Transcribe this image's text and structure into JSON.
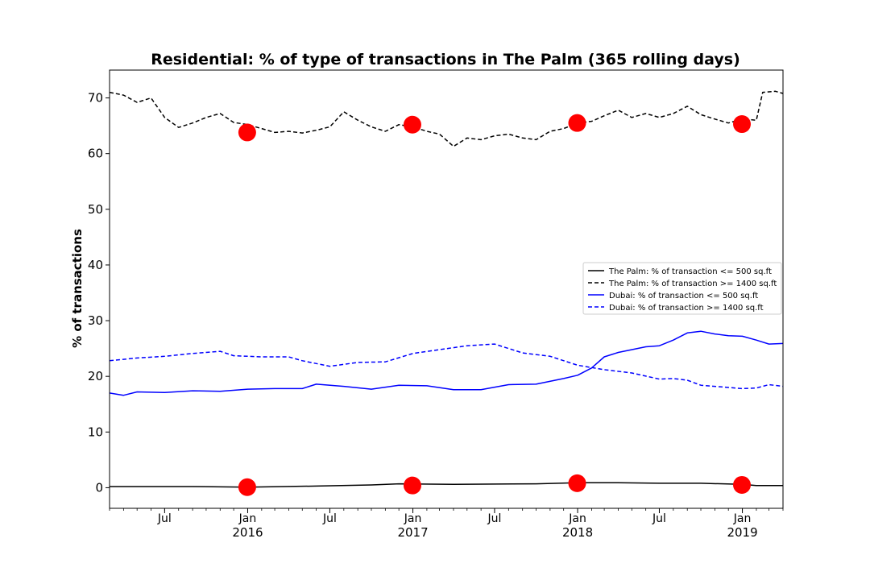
{
  "chart_data": {
    "type": "line",
    "title": "Residential: % of type of transactions in The Palm (365 rolling days)",
    "xlabel": "",
    "ylabel": "% of transactions",
    "xlim": [
      "2015-03-01",
      "2019-04-01"
    ],
    "ylim": [
      -3.7,
      75
    ],
    "yticks": [
      0,
      10,
      20,
      30,
      40,
      50,
      60,
      70
    ],
    "xticks_major": [
      {
        "date": "2015-07-01",
        "label": "Jul",
        "sublabel": ""
      },
      {
        "date": "2016-01-01",
        "label": "Jan",
        "sublabel": "2016"
      },
      {
        "date": "2016-07-01",
        "label": "Jul",
        "sublabel": ""
      },
      {
        "date": "2017-01-01",
        "label": "Jan",
        "sublabel": "2017"
      },
      {
        "date": "2017-07-01",
        "label": "Jul",
        "sublabel": ""
      },
      {
        "date": "2018-01-01",
        "label": "Jan",
        "sublabel": "2018"
      },
      {
        "date": "2018-07-01",
        "label": "Jul",
        "sublabel": ""
      },
      {
        "date": "2019-01-01",
        "label": "Jan",
        "sublabel": "2019"
      }
    ],
    "legend": {
      "placement": "center-right"
    },
    "grid": false,
    "series": [
      {
        "name": "The Palm: % of transaction <= 500 sq.ft",
        "color": "#000000",
        "style": "solid",
        "points": [
          [
            "2015-03-01",
            0.2
          ],
          [
            "2015-09-01",
            0.2
          ],
          [
            "2016-01-01",
            0.1
          ],
          [
            "2016-06-01",
            0.3
          ],
          [
            "2016-10-01",
            0.5
          ],
          [
            "2016-12-01",
            0.7
          ],
          [
            "2017-04-01",
            0.6
          ],
          [
            "2017-10-01",
            0.7
          ],
          [
            "2018-01-01",
            0.9
          ],
          [
            "2018-04-01",
            0.9
          ],
          [
            "2018-07-01",
            0.8
          ],
          [
            "2018-10-01",
            0.8
          ],
          [
            "2019-01-01",
            0.6
          ],
          [
            "2019-02-01",
            0.4
          ],
          [
            "2019-04-01",
            0.4
          ]
        ]
      },
      {
        "name": "The Palm: % of transaction >= 1400 sq.ft",
        "color": "#000000",
        "style": "dashed",
        "points": [
          [
            "2015-03-01",
            71.0
          ],
          [
            "2015-04-01",
            70.5
          ],
          [
            "2015-05-01",
            69.2
          ],
          [
            "2015-06-01",
            70.0
          ],
          [
            "2015-07-01",
            66.5
          ],
          [
            "2015-08-01",
            64.7
          ],
          [
            "2015-09-01",
            65.5
          ],
          [
            "2015-10-01",
            66.5
          ],
          [
            "2015-11-01",
            67.2
          ],
          [
            "2015-12-01",
            65.6
          ],
          [
            "2016-01-01",
            65.2
          ],
          [
            "2016-02-01",
            64.5
          ],
          [
            "2016-03-01",
            63.8
          ],
          [
            "2016-04-01",
            64.0
          ],
          [
            "2016-05-01",
            63.7
          ],
          [
            "2016-06-01",
            64.2
          ],
          [
            "2016-07-01",
            64.8
          ],
          [
            "2016-08-01",
            67.5
          ],
          [
            "2016-09-01",
            66.0
          ],
          [
            "2016-10-01",
            64.8
          ],
          [
            "2016-11-01",
            64.0
          ],
          [
            "2016-12-01",
            65.2
          ],
          [
            "2017-01-01",
            64.8
          ],
          [
            "2017-02-01",
            64.0
          ],
          [
            "2017-03-01",
            63.5
          ],
          [
            "2017-04-01",
            61.3
          ],
          [
            "2017-05-01",
            62.8
          ],
          [
            "2017-06-01",
            62.5
          ],
          [
            "2017-07-01",
            63.2
          ],
          [
            "2017-08-01",
            63.5
          ],
          [
            "2017-09-01",
            62.8
          ],
          [
            "2017-10-01",
            62.5
          ],
          [
            "2017-11-01",
            64.0
          ],
          [
            "2017-12-01",
            64.5
          ],
          [
            "2018-01-01",
            65.5
          ],
          [
            "2018-02-01",
            65.8
          ],
          [
            "2018-03-01",
            66.8
          ],
          [
            "2018-04-01",
            67.8
          ],
          [
            "2018-05-01",
            66.5
          ],
          [
            "2018-06-01",
            67.2
          ],
          [
            "2018-07-01",
            66.5
          ],
          [
            "2018-08-01",
            67.2
          ],
          [
            "2018-09-01",
            68.5
          ],
          [
            "2018-10-01",
            67.0
          ],
          [
            "2018-11-01",
            66.2
          ],
          [
            "2018-12-01",
            65.5
          ],
          [
            "2019-01-01",
            66.2
          ],
          [
            "2019-02-01",
            66.0
          ],
          [
            "2019-02-15",
            71.0
          ],
          [
            "2019-03-15",
            71.2
          ],
          [
            "2019-04-01",
            70.8
          ]
        ]
      },
      {
        "name": "Dubai: % of transaction <= 500 sq.ft",
        "color": "#0000ff",
        "style": "solid",
        "points": [
          [
            "2015-03-01",
            17.0
          ],
          [
            "2015-04-01",
            16.6
          ],
          [
            "2015-05-01",
            17.2
          ],
          [
            "2015-07-01",
            17.1
          ],
          [
            "2015-09-01",
            17.4
          ],
          [
            "2015-11-01",
            17.3
          ],
          [
            "2016-01-01",
            17.7
          ],
          [
            "2016-03-01",
            17.8
          ],
          [
            "2016-05-01",
            17.8
          ],
          [
            "2016-06-01",
            18.6
          ],
          [
            "2016-08-01",
            18.2
          ],
          [
            "2016-10-01",
            17.7
          ],
          [
            "2016-12-01",
            18.4
          ],
          [
            "2017-02-01",
            18.3
          ],
          [
            "2017-04-01",
            17.6
          ],
          [
            "2017-06-01",
            17.6
          ],
          [
            "2017-08-01",
            18.5
          ],
          [
            "2017-10-01",
            18.6
          ],
          [
            "2017-12-01",
            19.6
          ],
          [
            "2018-01-01",
            20.2
          ],
          [
            "2018-02-01",
            21.5
          ],
          [
            "2018-03-01",
            23.5
          ],
          [
            "2018-04-01",
            24.3
          ],
          [
            "2018-06-01",
            25.3
          ],
          [
            "2018-07-01",
            25.5
          ],
          [
            "2018-08-01",
            26.5
          ],
          [
            "2018-09-01",
            27.8
          ],
          [
            "2018-10-01",
            28.1
          ],
          [
            "2018-11-01",
            27.6
          ],
          [
            "2018-12-01",
            27.3
          ],
          [
            "2019-01-01",
            27.2
          ],
          [
            "2019-02-01",
            26.5
          ],
          [
            "2019-03-01",
            25.8
          ],
          [
            "2019-04-01",
            25.9
          ]
        ]
      },
      {
        "name": "Dubai: % of transaction >= 1400 sq.ft",
        "color": "#0000ff",
        "style": "dashed",
        "points": [
          [
            "2015-03-01",
            22.8
          ],
          [
            "2015-05-01",
            23.3
          ],
          [
            "2015-07-01",
            23.6
          ],
          [
            "2015-09-01",
            24.1
          ],
          [
            "2015-11-01",
            24.5
          ],
          [
            "2015-12-01",
            23.7
          ],
          [
            "2016-02-01",
            23.5
          ],
          [
            "2016-04-01",
            23.5
          ],
          [
            "2016-05-01",
            22.8
          ],
          [
            "2016-07-01",
            21.8
          ],
          [
            "2016-09-01",
            22.5
          ],
          [
            "2016-11-01",
            22.6
          ],
          [
            "2017-01-01",
            24.1
          ],
          [
            "2017-03-01",
            24.8
          ],
          [
            "2017-05-01",
            25.5
          ],
          [
            "2017-07-01",
            25.8
          ],
          [
            "2017-08-01",
            25.0
          ],
          [
            "2017-09-01",
            24.2
          ],
          [
            "2017-11-01",
            23.6
          ],
          [
            "2018-01-01",
            22.0
          ],
          [
            "2018-03-01",
            21.2
          ],
          [
            "2018-05-01",
            20.6
          ],
          [
            "2018-07-01",
            19.5
          ],
          [
            "2018-08-01",
            19.6
          ],
          [
            "2018-09-01",
            19.3
          ],
          [
            "2018-10-01",
            18.4
          ],
          [
            "2018-12-01",
            18.0
          ],
          [
            "2019-01-01",
            17.8
          ],
          [
            "2019-02-01",
            17.9
          ],
          [
            "2019-03-01",
            18.5
          ],
          [
            "2019-04-01",
            18.2
          ]
        ]
      }
    ],
    "markers": [
      {
        "date": "2015-12-31",
        "value": 63.8
      },
      {
        "date": "2016-12-31",
        "value": 65.2
      },
      {
        "date": "2017-12-31",
        "value": 65.5
      },
      {
        "date": "2018-12-31",
        "value": 65.3
      },
      {
        "date": "2015-12-31",
        "value": 0.1
      },
      {
        "date": "2016-12-31",
        "value": 0.4
      },
      {
        "date": "2017-12-31",
        "value": 0.8
      },
      {
        "date": "2018-12-31",
        "value": 0.5
      }
    ],
    "marker_color": "#ff0000"
  }
}
